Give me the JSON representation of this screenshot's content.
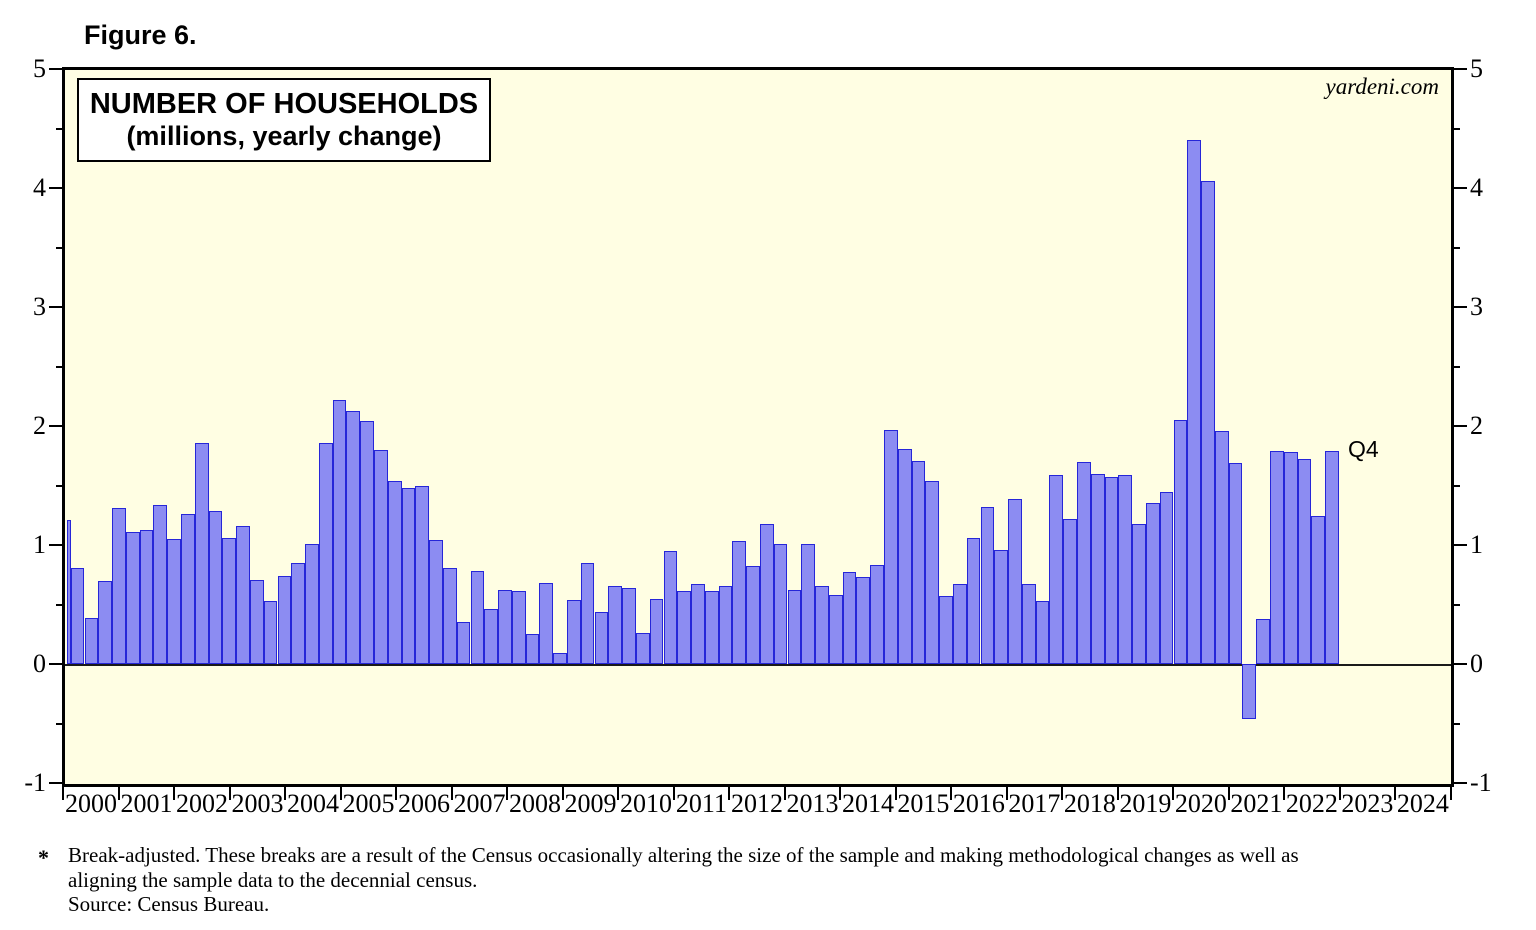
{
  "figure_label": "Figure 6.",
  "title": {
    "line1": "NUMBER OF HOUSEHOLDS",
    "line2": "(millions, yearly change)"
  },
  "watermark": "yardeni.com",
  "last_point_label": "Q4",
  "footnote": {
    "marker": "*",
    "lines": [
      "Break-adjusted. These breaks are a result of the Census occasionally altering the size of the sample and making methodological changes as well as",
      "aligning the sample data to the decennial census.",
      "Source: Census Bureau."
    ]
  },
  "colors": {
    "plot_background": "#fffee3",
    "bar_fill": "#8c8cf2",
    "bar_border": "#2626d8",
    "axis": "#000000"
  },
  "chart_data": {
    "type": "bar",
    "title": "NUMBER OF HOUSEHOLDS (millions, yearly change)",
    "ylabel": "millions, yearly change",
    "ylim": [
      -1,
      5
    ],
    "y_major_ticks": [
      -1,
      0,
      1,
      2,
      3,
      4,
      5
    ],
    "y_minor_ticks": [
      -0.5,
      0.5,
      1.5,
      2.5,
      3.5,
      4.5
    ],
    "x_year_labels": [
      2000,
      2001,
      2002,
      2003,
      2004,
      2005,
      2006,
      2007,
      2008,
      2009,
      2010,
      2011,
      2012,
      2013,
      2014,
      2015,
      2016,
      2017,
      2018,
      2019,
      2020,
      2021,
      2022,
      2023,
      2024
    ],
    "frequency": "quarterly",
    "start_quarter": "1999Q4",
    "end_quarter": "2022Q4",
    "values": [
      1.21,
      0.81,
      0.39,
      0.7,
      1.31,
      1.11,
      1.13,
      1.34,
      1.05,
      1.26,
      1.86,
      1.29,
      1.06,
      1.16,
      0.71,
      0.53,
      0.74,
      0.85,
      1.01,
      1.86,
      2.22,
      2.13,
      2.04,
      1.8,
      1.54,
      1.48,
      1.5,
      1.04,
      0.81,
      0.35,
      0.78,
      0.46,
      0.62,
      0.61,
      0.25,
      0.68,
      0.09,
      0.54,
      0.85,
      0.44,
      0.66,
      0.64,
      0.26,
      0.55,
      0.95,
      0.61,
      0.67,
      0.61,
      0.66,
      1.03,
      0.82,
      1.18,
      1.01,
      0.62,
      1.01,
      0.66,
      0.58,
      0.77,
      0.73,
      0.83,
      1.97,
      1.81,
      1.71,
      1.54,
      0.57,
      0.67,
      1.06,
      1.32,
      0.96,
      1.39,
      0.67,
      0.53,
      1.59,
      1.22,
      1.7,
      1.6,
      1.57,
      1.59,
      1.18,
      1.35,
      1.45,
      2.05,
      4.4,
      4.06,
      1.96,
      1.69,
      -0.46,
      0.38,
      1.79,
      1.78,
      1.72,
      1.24,
      1.79
    ]
  }
}
